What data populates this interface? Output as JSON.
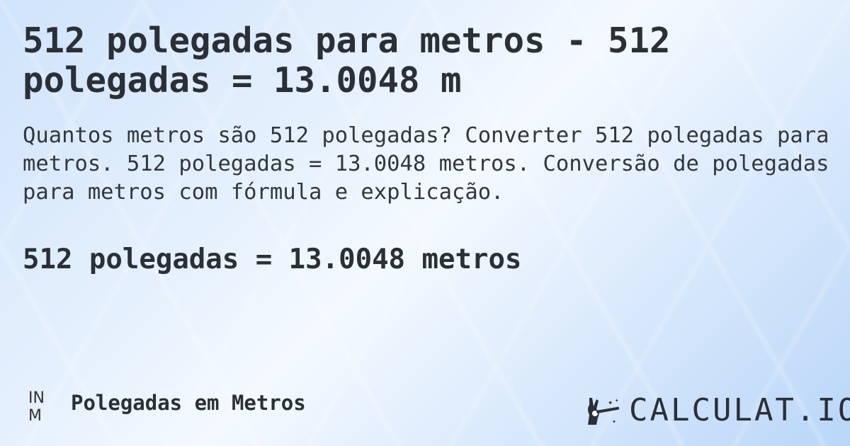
{
  "title": "512 polegadas para metros - 512 polegadas = 13.0048 m",
  "description": "Quantos metros são 512 polegadas? Converter 512 polegadas para metros. 512 polegadas = 13.0048 metros. Conversão de polegadas para metros com fórmula e explicação.",
  "result": "512 polegadas = 13.0048 metros",
  "footer": {
    "icon_text": "IN M",
    "icon_line1": "IN",
    "icon_line2": "M",
    "label": "Polegadas em Metros"
  },
  "logo": {
    "text": "CALCULAT.IO",
    "icon": "magic-hand-icon"
  }
}
